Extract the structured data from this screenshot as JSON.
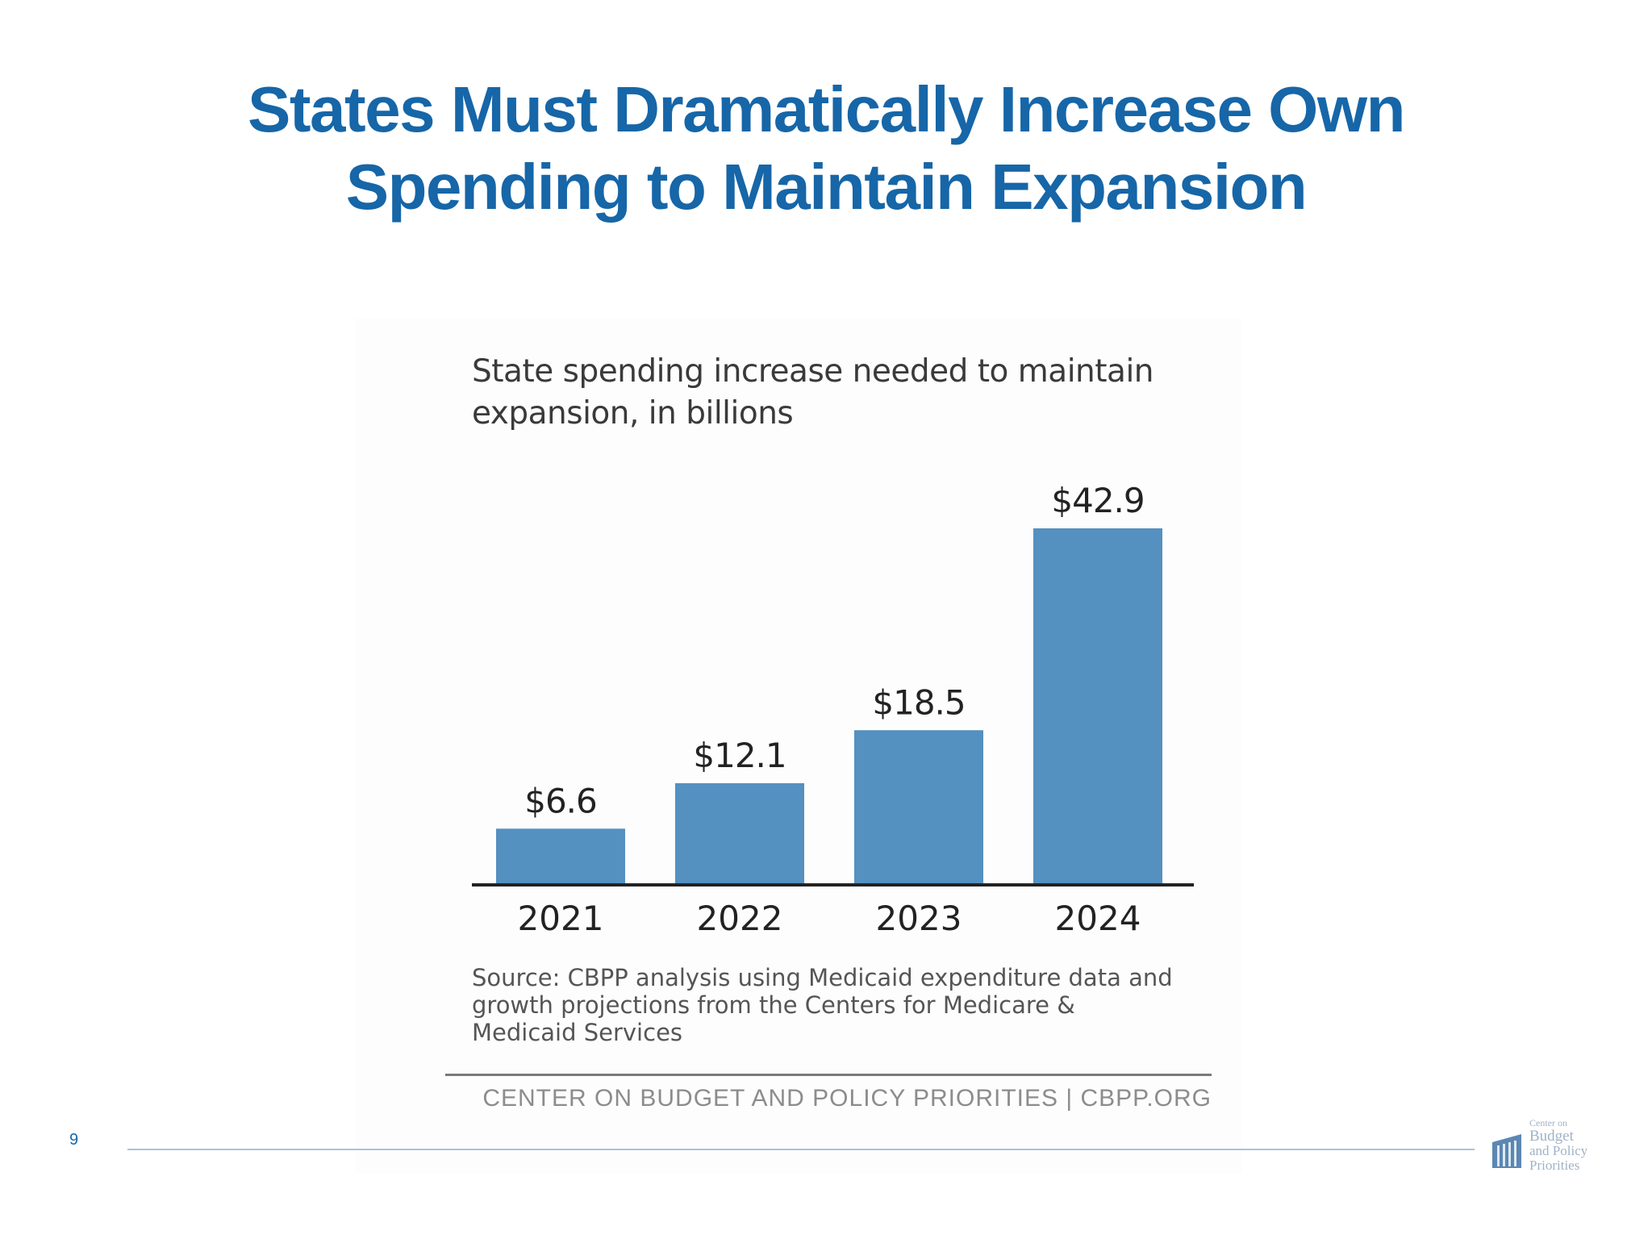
{
  "slide": {
    "title_line1": "States Must Dramatically Increase Own",
    "title_line2": "Spending to Maintain Expansion",
    "page_number": "9"
  },
  "chart_data": {
    "type": "bar",
    "title": "",
    "subtitle_line1": "State spending increase needed to maintain",
    "subtitle_line2": "expansion, in billions",
    "categories": [
      "2021",
      "2022",
      "2023",
      "2024"
    ],
    "values": [
      6.6,
      12.1,
      18.5,
      42.9
    ],
    "data_labels": [
      "$6.6",
      "$12.1",
      "$18.5",
      "$42.9"
    ],
    "ylim": [
      0,
      42.9
    ],
    "bar_color": "#5490c0",
    "axis_color": "#222222",
    "grid": false,
    "legend": "none"
  },
  "source": {
    "line1": "Source: CBPP analysis using Medicaid expenditure data and",
    "line2": "growth projections from the Centers for Medicare &",
    "line3": "Medicaid Services"
  },
  "footer": {
    "org": "CENTER ON BUDGET AND POLICY PRIORITIES | CBPP.ORG"
  },
  "logo": {
    "line1": "Center on",
    "line2": "Budget",
    "line3": "and Policy",
    "line4": "Priorities"
  },
  "colors": {
    "title": "#1666a8",
    "accent_rule": "#a8c3dc"
  }
}
